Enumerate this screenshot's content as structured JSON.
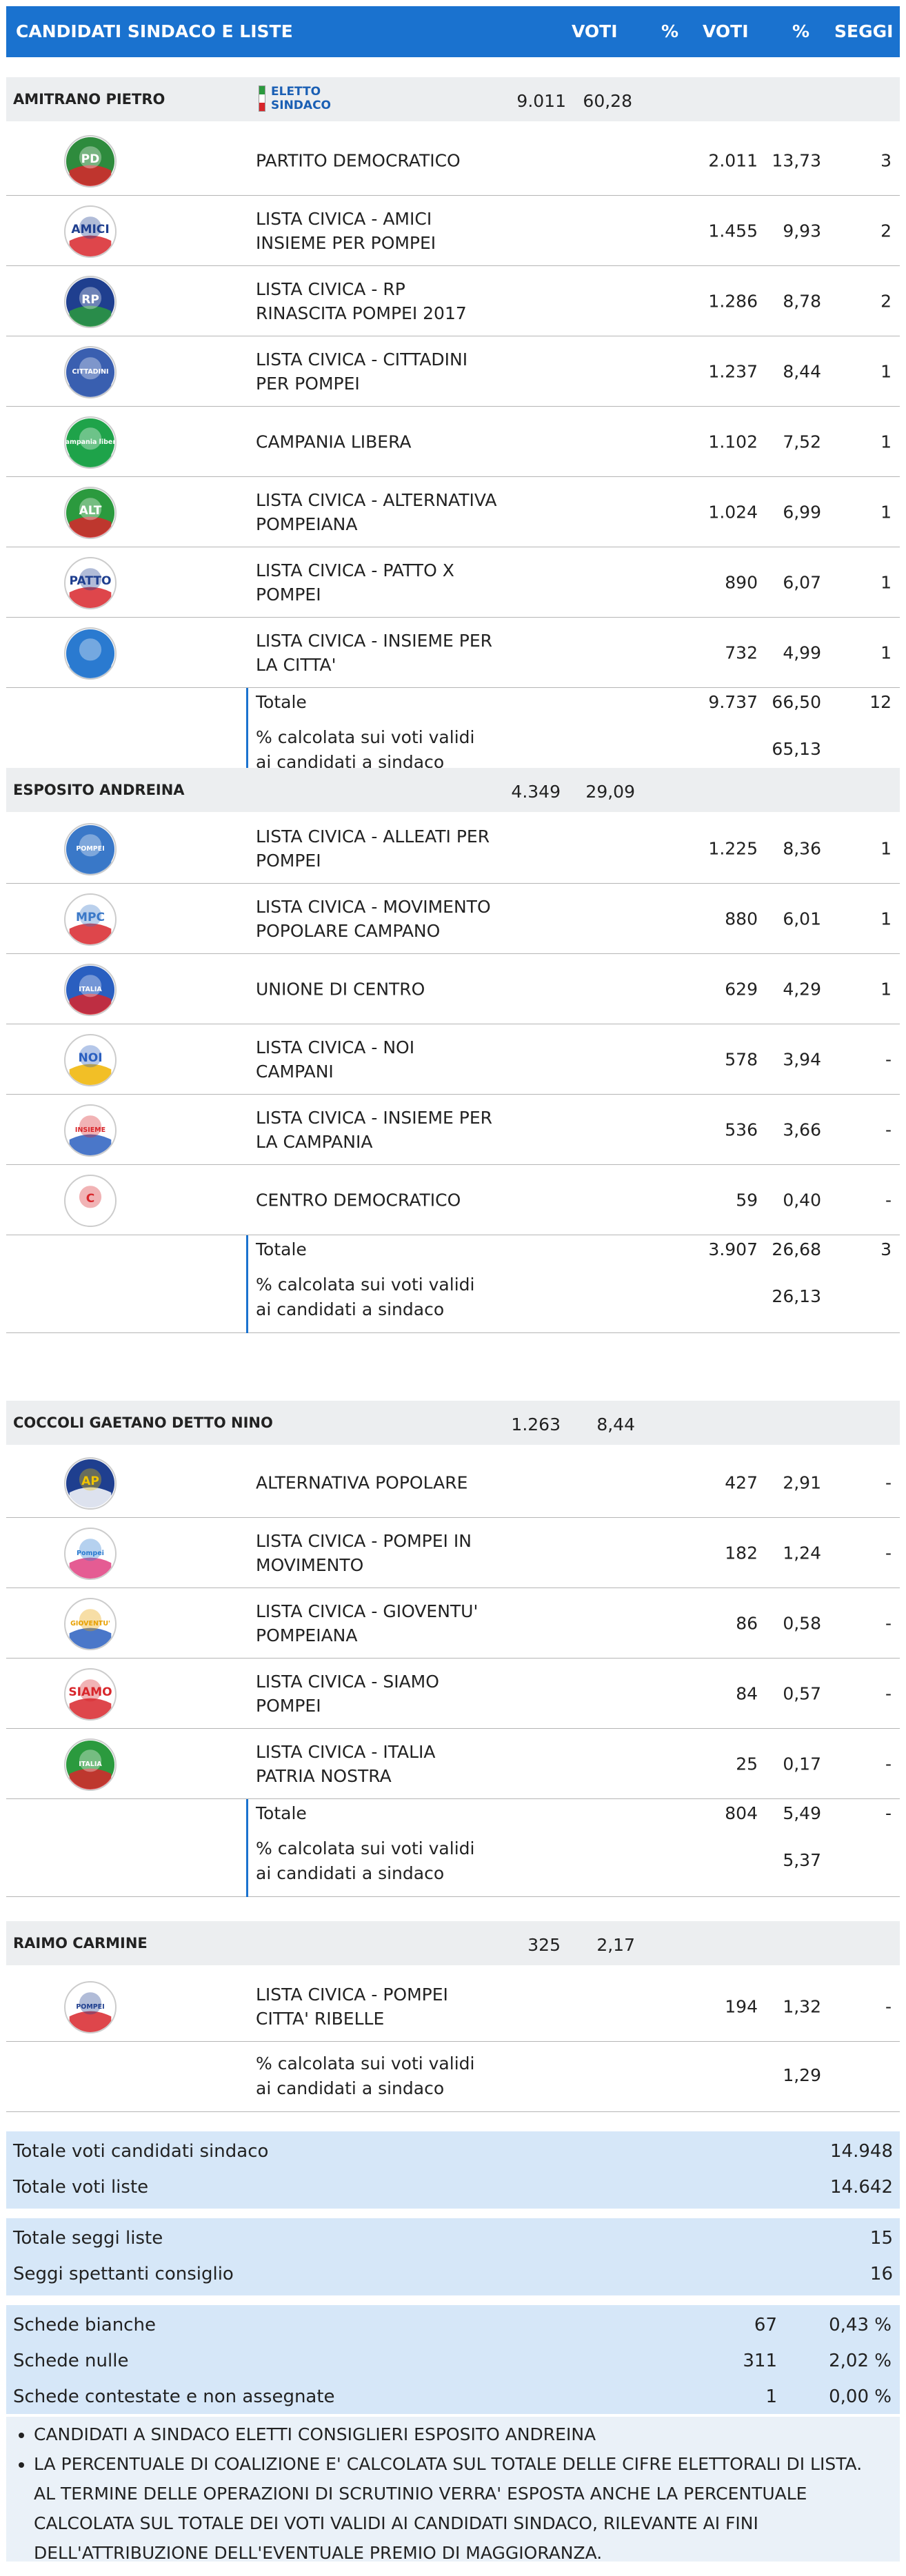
{
  "header": {
    "candidates": "CANDIDATI SINDACO E LISTE",
    "voti1": "VOTI",
    "pct1": "%",
    "voti2": "VOTI",
    "pct2": "%",
    "seggi": "SEGGI"
  },
  "elected_badge": {
    "line1": "ELETTO",
    "line2": "SINDACO"
  },
  "candidates": [
    {
      "name": "AMITRANO PIETRO",
      "votes": "9.011",
      "pct": "60,28",
      "lists": [
        {
          "name": "PARTITO DEMOCRATICO",
          "votes": "2.011",
          "pct": "13,73",
          "seats": "3",
          "logo": "pd-logo",
          "colors": [
            "#2e8b3d",
            "#ffffff",
            "#d8262b"
          ],
          "logo_text": "PD"
        },
        {
          "name": "LISTA CIVICA - AMICI INSIEME PER POMPEI",
          "votes": "1.455",
          "pct": "9,93",
          "seats": "2",
          "logo": "amici-insieme-logo",
          "colors": [
            "#ffffff",
            "#1f3f8f",
            "#d8262b"
          ],
          "logo_text": "AMICI"
        },
        {
          "name": "LISTA CIVICA - RP RINASCITA POMPEI 2017",
          "votes": "1.286",
          "pct": "8,78",
          "seats": "2",
          "logo": "rinascita-pompei-logo",
          "colors": [
            "#1f3f8f",
            "#ffffff",
            "#2b9a3e"
          ],
          "logo_text": "RP"
        },
        {
          "name": "LISTA CIVICA - CITTADINI PER POMPEI",
          "votes": "1.237",
          "pct": "8,44",
          "seats": "1",
          "logo": "cittadini-per-pompei-logo",
          "colors": [
            "#3a5fb0",
            "#ffffff",
            "#3a5fb0"
          ],
          "logo_text": "CITTADINI"
        },
        {
          "name": "CAMPANIA LIBERA",
          "votes": "1.102",
          "pct": "7,52",
          "seats": "1",
          "logo": "campania-libera-logo",
          "colors": [
            "#1fa34a",
            "#ffffff",
            "#1fa34a"
          ],
          "logo_text": "Campania libera"
        },
        {
          "name": "LISTA CIVICA - ALTERNATIVA POMPEIANA",
          "votes": "1.024",
          "pct": "6,99",
          "seats": "1",
          "logo": "alternativa-pompeiana-logo",
          "colors": [
            "#2b9a3e",
            "#ffffff",
            "#d8262b"
          ],
          "logo_text": "ALT"
        },
        {
          "name": "LISTA CIVICA - PATTO X POMPEI",
          "votes": "890",
          "pct": "6,07",
          "seats": "1",
          "logo": "patto-x-pompei-logo",
          "colors": [
            "#ffffff",
            "#1f3f8f",
            "#d8262b"
          ],
          "logo_text": "PATTO"
        },
        {
          "name": "LISTA CIVICA - INSIEME PER LA CITTA'",
          "votes": "732",
          "pct": "4,99",
          "seats": "1",
          "logo": "insieme-per-la-citta-logo",
          "colors": [
            "#2a7ad0",
            "#ffffff",
            "#2a7ad0"
          ],
          "logo_text": ""
        }
      ],
      "total": {
        "label": "Totale",
        "votes": "9.737",
        "pct": "66,50",
        "seats": "12"
      },
      "calc": {
        "label": "% calcolata sui voti validi ai candidati a sindaco",
        "pct": "65,13"
      }
    },
    {
      "name": "ESPOSITO ANDREINA",
      "votes": "4.349",
      "pct": "29,09",
      "lists": [
        {
          "name": "LISTA CIVICA - ALLEATI PER POMPEI",
          "votes": "1.225",
          "pct": "8,36",
          "seats": "1",
          "logo": "alleati-per-pompei-logo",
          "colors": [
            "#3a78c8",
            "#ffffff",
            "#3a78c8"
          ],
          "logo_text": "POMPEI"
        },
        {
          "name": "LISTA CIVICA - MOVIMENTO POPOLARE CAMPANO",
          "votes": "880",
          "pct": "6,01",
          "seats": "1",
          "logo": "movimento-popolare-campano-logo",
          "colors": [
            "#ffffff",
            "#3a78c8",
            "#d8262b"
          ],
          "logo_text": "MPC"
        },
        {
          "name": "UNIONE DI CENTRO",
          "votes": "629",
          "pct": "4,29",
          "seats": "1",
          "logo": "udc-logo",
          "colors": [
            "#2a5fc0",
            "#ffffff",
            "#d8262b"
          ],
          "logo_text": "ITALIA"
        },
        {
          "name": "LISTA CIVICA - NOI CAMPANI",
          "votes": "578",
          "pct": "3,94",
          "seats": "-",
          "logo": "noi-campani-logo",
          "colors": [
            "#ffffff",
            "#2a5fc0",
            "#f0b400"
          ],
          "logo_text": "NOI"
        },
        {
          "name": "LISTA CIVICA - INSIEME PER LA CAMPANIA",
          "votes": "536",
          "pct": "3,66",
          "seats": "-",
          "logo": "insieme-per-la-campania-logo",
          "colors": [
            "#ffffff",
            "#d8262b",
            "#2a5fc0"
          ],
          "logo_text": "INSIEME"
        },
        {
          "name": "CENTRO DEMOCRATICO",
          "votes": "59",
          "pct": "0,40",
          "seats": "-",
          "logo": "centro-democratico-logo",
          "colors": [
            "#ffffff",
            "#d8262b",
            "#ffffff"
          ],
          "logo_text": "C"
        }
      ],
      "total": {
        "label": "Totale",
        "votes": "3.907",
        "pct": "26,68",
        "seats": "3"
      },
      "calc": {
        "label": "% calcolata sui voti validi ai candidati a sindaco",
        "pct": "26,13"
      }
    },
    {
      "name": "COCCOLI GAETANO DETTO NINO",
      "votes": "1.263",
      "pct": "8,44",
      "lists": [
        {
          "name": "ALTERNATIVA POPOLARE",
          "votes": "427",
          "pct": "2,91",
          "seats": "-",
          "logo": "alternativa-popolare-logo",
          "colors": [
            "#1f3f8f",
            "#f0c400",
            "#ffffff"
          ],
          "logo_text": "AP"
        },
        {
          "name": "LISTA CIVICA - POMPEI IN MOVIMENTO",
          "votes": "182",
          "pct": "1,24",
          "seats": "-",
          "logo": "pompei-in-movimento-logo",
          "colors": [
            "#ffffff",
            "#2a7ad0",
            "#e04080"
          ],
          "logo_text": "Pompei"
        },
        {
          "name": "LISTA CIVICA - GIOVENTU' POMPEIANA",
          "votes": "86",
          "pct": "0,58",
          "seats": "-",
          "logo": "gioventu-pompeiana-logo",
          "colors": [
            "#ffffff",
            "#e8a000",
            "#2a5fc0"
          ],
          "logo_text": "GIOVENTU'"
        },
        {
          "name": "LISTA CIVICA - SIAMO POMPEI",
          "votes": "84",
          "pct": "0,57",
          "seats": "-",
          "logo": "siamo-pompei-logo",
          "colors": [
            "#ffffff",
            "#d8262b",
            "#d8262b"
          ],
          "logo_text": "SIAMO"
        },
        {
          "name": "LISTA CIVICA - ITALIA PATRIA NOSTRA",
          "votes": "25",
          "pct": "0,17",
          "seats": "-",
          "logo": "italia-patria-nostra-logo",
          "colors": [
            "#2b9a3e",
            "#ffffff",
            "#d8262b"
          ],
          "logo_text": "ITALIA"
        }
      ],
      "total": {
        "label": "Totale",
        "votes": "804",
        "pct": "5,49",
        "seats": "-"
      },
      "calc": {
        "label": "% calcolata sui voti validi ai candidati a sindaco",
        "pct": "5,37"
      }
    },
    {
      "name": "RAIMO CARMINE",
      "votes": "325",
      "pct": "2,17",
      "lists": [
        {
          "name": "LISTA CIVICA - POMPEI CITTA' RIBELLE",
          "votes": "194",
          "pct": "1,32",
          "seats": "-",
          "logo": "pompei-citta-ribelle-logo",
          "colors": [
            "#ffffff",
            "#1f3f8f",
            "#d8262b"
          ],
          "logo_text": "POMPEI"
        }
      ],
      "calc": {
        "label": "% calcolata sui voti validi ai candidati a sindaco",
        "pct": "1,29"
      }
    }
  ],
  "summary1": {
    "rows": [
      {
        "label": "Totale voti candidati sindaco",
        "value": "14.948"
      },
      {
        "label": "Totale voti liste",
        "value": "14.642"
      }
    ]
  },
  "summary2": {
    "rows": [
      {
        "label": "Totale seggi liste",
        "value": "15"
      },
      {
        "label": "Seggi spettanti consiglio",
        "value": "16"
      }
    ]
  },
  "summary3": {
    "rows": [
      {
        "label": "Schede bianche",
        "value": "67",
        "pct": "0,43 %"
      },
      {
        "label": "Schede nulle",
        "value": "311",
        "pct": "2,02 %"
      },
      {
        "label": "Schede contestate e non assegnate",
        "value": "1",
        "pct": "0,00 %"
      }
    ]
  },
  "notes": [
    "CANDIDATI A SINDACO ELETTI CONSIGLIERI ESPOSITO ANDREINA",
    "LA PERCENTUALE DI COALIZIONE E' CALCOLATA SUL TOTALE DELLE CIFRE ELETTORALI DI LISTA. AL TERMINE DELLE OPERAZIONI DI SCRUTINIO VERRA' ESPOSTA ANCHE LA PERCENTUALE CALCOLATA SUL TOTALE DEI VOTI VALIDI AI CANDIDATI SINDACO, RILEVANTE AI FINI DELL'ATTRIBUZIONE DELL'EVENTUALE PREMIO DI MAGGIORANZA."
  ]
}
